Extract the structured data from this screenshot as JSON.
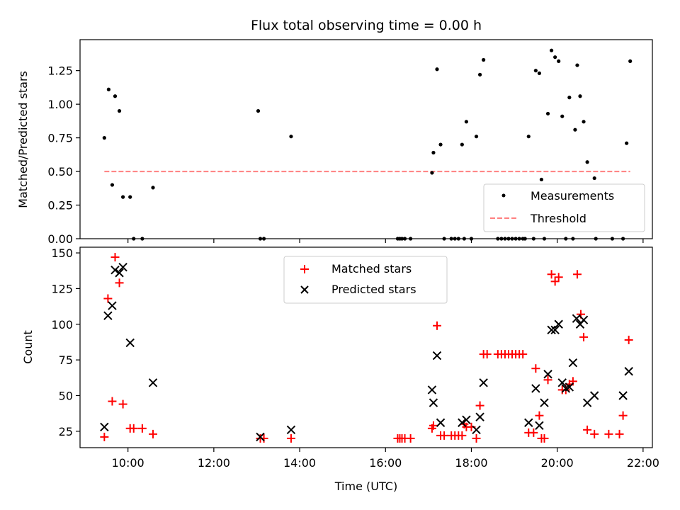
{
  "colors": {
    "measurement": "#000000",
    "threshold": "#ff8080",
    "matched": "#ff0000",
    "predicted": "#000000"
  },
  "chart_data": [
    {
      "type": "scatter",
      "title": "Flux total observing time = 0.00 h",
      "xlabel": "",
      "ylabel": "Matched/Predicted stars",
      "xlim": [
        "08:53",
        "22:13"
      ],
      "ylim": [
        0,
        1.48
      ],
      "yticks": [
        "0.00",
        "0.25",
        "0.50",
        "0.75",
        "1.00",
        "1.25"
      ],
      "grid": false,
      "legend_position": "bottom-right",
      "series": [
        {
          "name": "Measurements",
          "marker": "dot",
          "points": [
            [
              "09:27",
              0.75
            ],
            [
              "09:33",
              1.11
            ],
            [
              "09:38",
              0.4
            ],
            [
              "09:42",
              1.06
            ],
            [
              "09:48",
              0.95
            ],
            [
              "09:53",
              0.31
            ],
            [
              "10:03",
              0.31
            ],
            [
              "10:08",
              0.0
            ],
            [
              "10:20",
              0.0
            ],
            [
              "10:35",
              0.38
            ],
            [
              "13:02",
              0.95
            ],
            [
              "13:05",
              0.0
            ],
            [
              "13:10",
              0.0
            ],
            [
              "13:48",
              0.76
            ],
            [
              "16:17",
              0.0
            ],
            [
              "16:20",
              0.0
            ],
            [
              "16:23",
              0.0
            ],
            [
              "16:27",
              0.0
            ],
            [
              "16:35",
              0.0
            ],
            [
              "17:05",
              0.49
            ],
            [
              "17:07",
              0.64
            ],
            [
              "17:12",
              1.26
            ],
            [
              "17:17",
              0.7
            ],
            [
              "17:22",
              0.0
            ],
            [
              "17:32",
              0.0
            ],
            [
              "17:37",
              0.0
            ],
            [
              "17:42",
              0.0
            ],
            [
              "17:47",
              0.7
            ],
            [
              "17:50",
              0.0
            ],
            [
              "17:53",
              0.87
            ],
            [
              "18:00",
              0.0
            ],
            [
              "18:07",
              0.76
            ],
            [
              "18:12",
              1.22
            ],
            [
              "18:17",
              1.33
            ],
            [
              "18:37",
              0.0
            ],
            [
              "18:42",
              0.0
            ],
            [
              "18:47",
              0.0
            ],
            [
              "18:52",
              0.0
            ],
            [
              "18:57",
              0.0
            ],
            [
              "19:02",
              0.0
            ],
            [
              "19:07",
              0.0
            ],
            [
              "19:12",
              0.0
            ],
            [
              "19:15",
              0.0
            ],
            [
              "19:20",
              0.76
            ],
            [
              "19:27",
              0.0
            ],
            [
              "19:30",
              1.25
            ],
            [
              "19:35",
              1.23
            ],
            [
              "19:38",
              0.44
            ],
            [
              "19:42",
              0.0
            ],
            [
              "19:47",
              0.93
            ],
            [
              "19:52",
              1.4
            ],
            [
              "19:57",
              1.35
            ],
            [
              "20:02",
              1.32
            ],
            [
              "20:07",
              0.91
            ],
            [
              "20:12",
              0.0
            ],
            [
              "20:17",
              1.05
            ],
            [
              "20:22",
              0.0
            ],
            [
              "20:25",
              0.81
            ],
            [
              "20:28",
              1.29
            ],
            [
              "20:32",
              1.06
            ],
            [
              "20:37",
              0.87
            ],
            [
              "20:42",
              0.57
            ],
            [
              "20:52",
              0.45
            ],
            [
              "20:54",
              0.0
            ],
            [
              "21:17",
              0.0
            ],
            [
              "21:32",
              0.0
            ],
            [
              "21:37",
              0.71
            ],
            [
              "21:42",
              1.32
            ]
          ]
        },
        {
          "name": "Threshold",
          "style": "dashed",
          "points": [
            [
              "09:27",
              0.5
            ],
            [
              "21:42",
              0.5
            ]
          ]
        }
      ]
    },
    {
      "type": "scatter",
      "title": "",
      "xlabel": "Time (UTC)",
      "ylabel": "Count",
      "xlim": [
        "08:53",
        "22:13"
      ],
      "ylim": [
        13.5,
        154
      ],
      "yticks": [
        "25",
        "50",
        "75",
        "100",
        "125",
        "150"
      ],
      "xticks": [
        "10:00",
        "12:00",
        "14:00",
        "16:00",
        "18:00",
        "20:00",
        "22:00"
      ],
      "grid": false,
      "legend_position": "top-center",
      "series": [
        {
          "name": "Matched stars",
          "marker": "plus",
          "points": [
            [
              "09:27",
              21
            ],
            [
              "09:32",
              118
            ],
            [
              "09:38",
              46
            ],
            [
              "09:42",
              147
            ],
            [
              "09:48",
              129
            ],
            [
              "09:53",
              44
            ],
            [
              "10:03",
              27
            ],
            [
              "10:08",
              27
            ],
            [
              "10:20",
              27
            ],
            [
              "10:35",
              23
            ],
            [
              "13:05",
              20
            ],
            [
              "13:10",
              20
            ],
            [
              "13:48",
              20
            ],
            [
              "16:17",
              20
            ],
            [
              "16:20",
              20
            ],
            [
              "16:23",
              20
            ],
            [
              "16:27",
              20
            ],
            [
              "16:35",
              20
            ],
            [
              "17:05",
              27
            ],
            [
              "17:07",
              29
            ],
            [
              "17:12",
              99
            ],
            [
              "17:17",
              22
            ],
            [
              "17:22",
              22
            ],
            [
              "17:32",
              22
            ],
            [
              "17:37",
              22
            ],
            [
              "17:42",
              22
            ],
            [
              "17:47",
              22
            ],
            [
              "17:50",
              30
            ],
            [
              "17:53",
              28
            ],
            [
              "18:00",
              28
            ],
            [
              "18:07",
              20
            ],
            [
              "18:12",
              43
            ],
            [
              "18:17",
              79
            ],
            [
              "18:22",
              79
            ],
            [
              "18:37",
              79
            ],
            [
              "18:42",
              79
            ],
            [
              "18:47",
              79
            ],
            [
              "18:52",
              79
            ],
            [
              "18:57",
              79
            ],
            [
              "19:02",
              79
            ],
            [
              "19:07",
              79
            ],
            [
              "19:12",
              79
            ],
            [
              "19:20",
              24
            ],
            [
              "19:27",
              24
            ],
            [
              "19:30",
              69
            ],
            [
              "19:35",
              36
            ],
            [
              "19:38",
              20
            ],
            [
              "19:42",
              20
            ],
            [
              "19:47",
              61
            ],
            [
              "19:52",
              135
            ],
            [
              "19:57",
              130
            ],
            [
              "20:02",
              133
            ],
            [
              "20:07",
              54
            ],
            [
              "20:12",
              54
            ],
            [
              "20:17",
              58
            ],
            [
              "20:22",
              60
            ],
            [
              "20:28",
              135
            ],
            [
              "20:33",
              107
            ],
            [
              "20:37",
              91
            ],
            [
              "20:42",
              26
            ],
            [
              "20:52",
              23
            ],
            [
              "21:12",
              23
            ],
            [
              "21:27",
              23
            ],
            [
              "21:32",
              36
            ],
            [
              "21:40",
              89
            ]
          ]
        },
        {
          "name": "Predicted stars",
          "marker": "x",
          "points": [
            [
              "09:27",
              28
            ],
            [
              "09:32",
              106
            ],
            [
              "09:38",
              113
            ],
            [
              "09:42",
              138
            ],
            [
              "09:48",
              136
            ],
            [
              "09:53",
              140
            ],
            [
              "10:03",
              87
            ],
            [
              "10:35",
              59
            ],
            [
              "13:05",
              21
            ],
            [
              "13:48",
              26
            ],
            [
              "17:05",
              54
            ],
            [
              "17:07",
              45
            ],
            [
              "17:12",
              78
            ],
            [
              "17:17",
              31
            ],
            [
              "17:47",
              31
            ],
            [
              "17:53",
              33
            ],
            [
              "18:07",
              26
            ],
            [
              "18:12",
              35
            ],
            [
              "18:17",
              59
            ],
            [
              "19:20",
              31
            ],
            [
              "19:30",
              55
            ],
            [
              "19:35",
              29
            ],
            [
              "19:42",
              45
            ],
            [
              "19:47",
              65
            ],
            [
              "19:52",
              96
            ],
            [
              "19:57",
              96
            ],
            [
              "20:02",
              100
            ],
            [
              "20:07",
              59
            ],
            [
              "20:12",
              55
            ],
            [
              "20:17",
              56
            ],
            [
              "20:22",
              73
            ],
            [
              "20:27",
              104
            ],
            [
              "20:32",
              100
            ],
            [
              "20:37",
              103
            ],
            [
              "20:42",
              45
            ],
            [
              "20:52",
              50
            ],
            [
              "21:32",
              50
            ],
            [
              "21:40",
              67
            ]
          ]
        }
      ]
    }
  ]
}
